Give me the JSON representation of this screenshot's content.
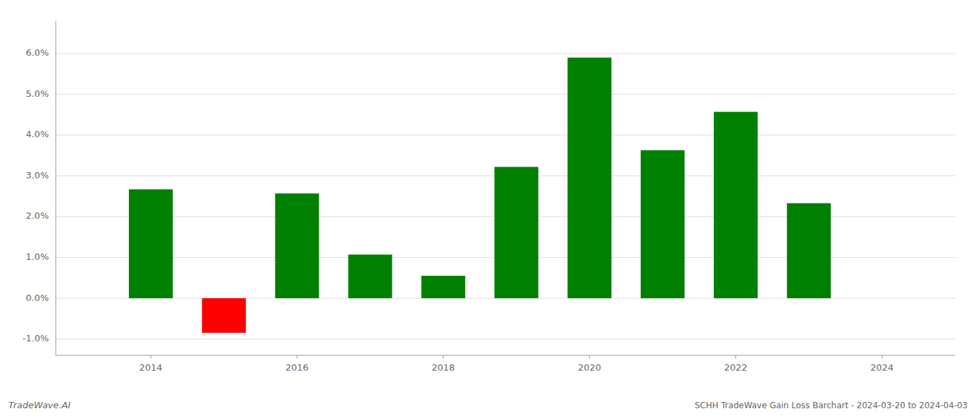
{
  "chart_data": {
    "type": "bar",
    "title": "SCHH TradeWave Gain Loss Barchart - 2024-03-20 to 2024-04-03",
    "annotations": [
      "TradeWave.AI"
    ],
    "x": [
      2014,
      2015,
      2016,
      2017,
      2018,
      2019,
      2020,
      2021,
      2022,
      2023
    ],
    "values": [
      0.0267,
      -0.0085,
      0.0257,
      0.0107,
      0.0055,
      0.0322,
      0.059,
      0.0363,
      0.0457,
      0.0233
    ],
    "colors": [
      "#008000",
      "#ff0000",
      "#008000",
      "#008000",
      "#008000",
      "#008000",
      "#008000",
      "#008000",
      "#008000",
      "#008000"
    ],
    "xlim": [
      2012.7,
      2025.0
    ],
    "xticks": [
      2014,
      2016,
      2018,
      2020,
      2022,
      2024
    ],
    "ylim": [
      -0.014,
      0.068
    ],
    "yticks": [
      {
        "value": -0.01,
        "label": "-1.0%"
      },
      {
        "value": 0.0,
        "label": "0.0%"
      },
      {
        "value": 0.01,
        "label": "1.0%"
      },
      {
        "value": 0.02,
        "label": "2.0%"
      },
      {
        "value": 0.03,
        "label": "3.0%"
      },
      {
        "value": 0.04,
        "label": "4.0%"
      },
      {
        "value": 0.05,
        "label": "5.0%"
      },
      {
        "value": 0.06,
        "label": "6.0%"
      }
    ],
    "grid": true
  }
}
